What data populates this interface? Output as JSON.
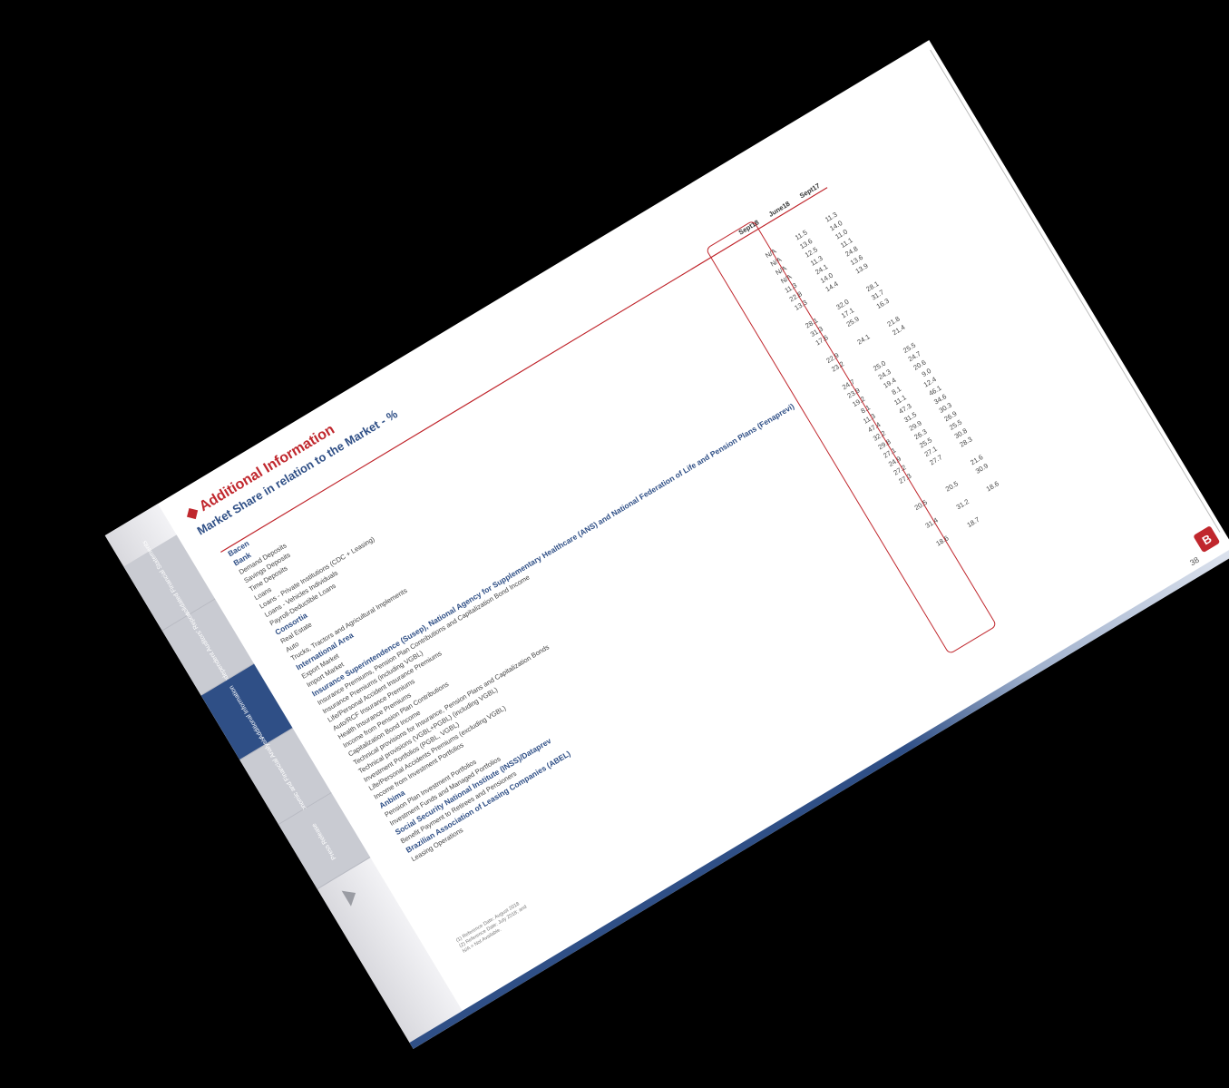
{
  "nav": {
    "tabs": [
      "Press Release",
      "Economic and Financial Analysis",
      "Additional Information",
      "Independent Auditors' Report",
      "Consolidated Financial Statements"
    ]
  },
  "header": {
    "title": "Additional Information",
    "subtitle": "Market Share in relation to the Market - %"
  },
  "table": {
    "columns": [
      "",
      "Sept18",
      "June18",
      "Sept17"
    ],
    "rows": [
      {
        "type": "sec",
        "label": "Bacen",
        "values": [
          "",
          "",
          ""
        ]
      },
      {
        "type": "sec",
        "label": "Bank",
        "values": [
          "",
          "",
          ""
        ]
      },
      {
        "type": "row",
        "label": "Demand Deposits",
        "values": [
          "N/A",
          "11.5",
          "11.3"
        ]
      },
      {
        "type": "row",
        "label": "Savings Deposits",
        "values": [
          "N/A",
          "13.6",
          "14.0"
        ]
      },
      {
        "type": "row",
        "label": "Time Deposits",
        "values": [
          "N/A",
          "12.5",
          "11.0"
        ]
      },
      {
        "type": "row",
        "label": "Loans",
        "values": [
          "N/A",
          "11.3",
          "11.1"
        ]
      },
      {
        "type": "row",
        "label": "Loans - Private Institutions (CDC + Leasing)",
        "values": [
          "11.3",
          "24.1",
          "24.8"
        ]
      },
      {
        "type": "row",
        "label": "Loans - Vehicles Individuals",
        "values": [
          "22.8",
          "14.0",
          "13.6"
        ]
      },
      {
        "type": "row",
        "label": "Payroll-Deductible Loans",
        "values": [
          "13.3",
          "14.4",
          "13.9"
        ]
      },
      {
        "type": "sec",
        "label": "Consortia",
        "values": [
          "",
          "",
          ""
        ]
      },
      {
        "type": "row",
        "label": "Real Estate",
        "values": [
          "28.1",
          "32.0",
          "28.1"
        ]
      },
      {
        "type": "row",
        "label": "Auto",
        "values": [
          "31.3",
          "17.1",
          "31.7"
        ]
      },
      {
        "type": "row",
        "label": "Trucks, Tractors and Agricultural Implements",
        "values": [
          "17.6",
          "25.9",
          "16.3"
        ]
      },
      {
        "type": "sec",
        "label": "International Area",
        "values": [
          "",
          "",
          ""
        ]
      },
      {
        "type": "row",
        "label": "Export Market",
        "values": [
          "22.9",
          "24.1",
          "21.8"
        ]
      },
      {
        "type": "row",
        "label": "Import Market",
        "values": [
          "23.2",
          "",
          "21.4"
        ]
      },
      {
        "type": "sec",
        "label": "Insurance Superintendence (Susep), National Agency for Supplementary Healthcare (ANS) and National Federation of Life and Pension Plans (Fenaprevi)",
        "values": [
          "",
          "",
          ""
        ]
      },
      {
        "type": "row",
        "label": "Insurance Premiums, Pension Plan Contributions and Capitalization Bond Income",
        "values": [
          "24.7",
          "25.0",
          "25.5"
        ]
      },
      {
        "type": "row",
        "label": "Insurance Premiums (including VGBL)",
        "values": [
          "23.9",
          "24.3",
          "24.7"
        ]
      },
      {
        "type": "row",
        "label": "Life/Personal Accident Insurance Premiums",
        "values": [
          "19.2",
          "19.4",
          "20.6"
        ]
      },
      {
        "type": "row",
        "label": "Auto/RCF Insurance Premiums",
        "values": [
          "8.1",
          "8.1",
          "9.0"
        ]
      },
      {
        "type": "row",
        "label": "Health Insurance Premiums",
        "values": [
          "11.3",
          "11.1",
          "12.4"
        ]
      },
      {
        "type": "row",
        "label": "Income from Pension Plan Contributions",
        "values": [
          "47.4",
          "47.3",
          "46.1"
        ]
      },
      {
        "type": "row",
        "label": "Capitalization Bond Income",
        "values": [
          "32.2",
          "31.5",
          "34.6"
        ]
      },
      {
        "type": "row",
        "label": "Technical provisions for Insurance, Pension Plans and Capitalization Bonds",
        "values": [
          "29.8",
          "29.9",
          "30.3"
        ]
      },
      {
        "type": "row",
        "label": "Technical provisions (VGBL+PGBL) (including VGBL)",
        "values": [
          "27.1",
          "26.3",
          "26.9"
        ]
      },
      {
        "type": "row",
        "label": "Investment Portfolios (PGBL, VGBL)",
        "values": [
          "24.9",
          "25.5",
          "25.5"
        ]
      },
      {
        "type": "row",
        "label": "Life/Personal Accidents Premiums (excluding VGBL)",
        "values": [
          "27.2",
          "27.1",
          "30.8"
        ]
      },
      {
        "type": "row",
        "label": "Income from Investment Portfolios",
        "values": [
          "27.3",
          "27.7",
          "28.3"
        ]
      },
      {
        "type": "sec",
        "label": "Anbima",
        "values": [
          "",
          "",
          ""
        ]
      },
      {
        "type": "row",
        "label": "Pension Plan Investment Portfolios",
        "values": [
          "",
          "",
          "21.6"
        ]
      },
      {
        "type": "row",
        "label": "Investment Funds and Managed Portfolios",
        "values": [
          "20.5",
          "20.5",
          "30.9"
        ]
      },
      {
        "type": "sec",
        "label": "Social Security National Institute (INSS)/Dataprev",
        "values": [
          "",
          "",
          ""
        ]
      },
      {
        "type": "row",
        "label": "Benefit Payment to Retirees and Pensioners",
        "values": [
          "31.4",
          "31.2",
          "18.6"
        ]
      },
      {
        "type": "sec",
        "label": "Brazilian Association of Leasing Companies (ABEL)",
        "values": [
          "",
          "",
          ""
        ]
      },
      {
        "type": "row",
        "label": "Leasing Operations",
        "values": [
          "18.6",
          "18.7",
          ""
        ]
      }
    ]
  },
  "notes": [
    "(1) Reference Date: August 2018",
    "(2) Reference Date: July 2018; and",
    "N/A = Not Available."
  ],
  "page_number": "38"
}
